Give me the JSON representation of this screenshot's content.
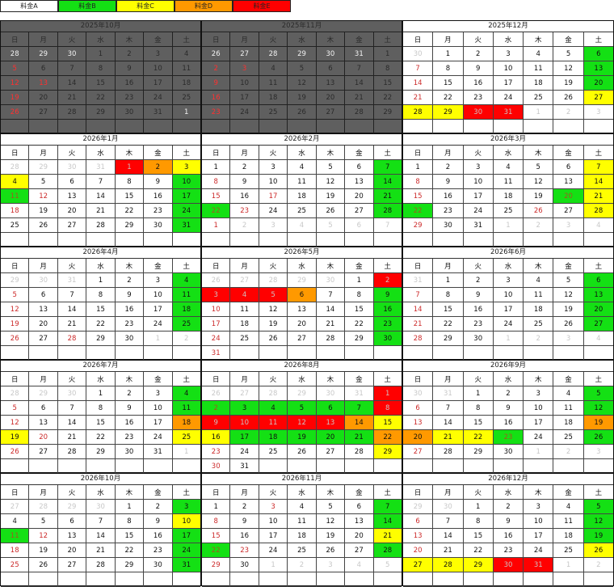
{
  "legend": [
    {
      "label": "料金A",
      "color": "#ffffff"
    },
    {
      "label": "料金B",
      "color": "#14e014"
    },
    {
      "label": "料金C",
      "color": "#ffff00"
    },
    {
      "label": "料金D",
      "color": "#ff9900"
    },
    {
      "label": "料金E",
      "color": "#ff0000"
    }
  ],
  "weekdays": [
    "日",
    "月",
    "火",
    "水",
    "木",
    "金",
    "土"
  ],
  "cell_code_legend": "o = other month, r = red (Sunday/holiday) text, B/C/D/E = rate fill",
  "months": [
    {
      "title": "2025年10月",
      "past": true,
      "weeks": [
        [
          "28o",
          "29o",
          "30o",
          "1",
          "2",
          "3",
          "4"
        ],
        [
          "5r",
          "6",
          "7",
          "8",
          "9",
          "10",
          "11"
        ],
        [
          "12r",
          "13r",
          "14",
          "15",
          "16",
          "17",
          "18"
        ],
        [
          "19r",
          "20",
          "21",
          "22",
          "23",
          "24",
          "25"
        ],
        [
          "26r",
          "27",
          "28",
          "29",
          "30",
          "31",
          "1o"
        ],
        [
          "",
          "",
          "",
          "",
          "",
          "",
          ""
        ]
      ]
    },
    {
      "title": "2025年11月",
      "past": true,
      "weeks": [
        [
          "26o",
          "27o",
          "28o",
          "29o",
          "30o",
          "31o",
          "1"
        ],
        [
          "2r",
          "3r",
          "4",
          "5",
          "6",
          "7",
          "8"
        ],
        [
          "9r",
          "10",
          "11",
          "12",
          "13",
          "14",
          "15"
        ],
        [
          "16r",
          "17",
          "18",
          "19",
          "20",
          "21",
          "22"
        ],
        [
          "23r",
          "24",
          "25",
          "26",
          "27",
          "28",
          "29"
        ],
        [
          "",
          "",
          "",
          "",
          "",
          "",
          ""
        ]
      ]
    },
    {
      "title": "2025年12月",
      "past": false,
      "weeks": [
        [
          "30o",
          "1",
          "2",
          "3",
          "4",
          "5",
          "6B"
        ],
        [
          "7r",
          "8",
          "9",
          "10",
          "11",
          "12",
          "13B"
        ],
        [
          "14r",
          "15",
          "16",
          "17",
          "18",
          "19",
          "20B"
        ],
        [
          "21r",
          "22",
          "23",
          "24",
          "25",
          "26",
          "27C"
        ],
        [
          "28C",
          "29C",
          "30E",
          "31E",
          "1o",
          "2o",
          "3o"
        ],
        [
          "",
          "",
          "",
          "",
          "",
          "",
          ""
        ]
      ]
    },
    {
      "title": "2026年1月",
      "past": false,
      "weeks": [
        [
          "28o",
          "29o",
          "30o",
          "31o",
          "1E",
          "2D",
          "3C"
        ],
        [
          "4C",
          "5",
          "6",
          "7",
          "8",
          "9",
          "10B"
        ],
        [
          "11rB",
          "12r",
          "13",
          "14",
          "15",
          "16",
          "17B"
        ],
        [
          "18r",
          "19",
          "20",
          "21",
          "22",
          "23",
          "24B"
        ],
        [
          "25",
          "26",
          "27",
          "28",
          "29",
          "30",
          "31B"
        ],
        [
          "",
          "",
          "",
          "",
          "",
          "",
          ""
        ]
      ]
    },
    {
      "title": "2026年2月",
      "past": false,
      "weeks": [
        [
          "1",
          "2",
          "3",
          "4",
          "5",
          "6",
          "7B"
        ],
        [
          "8r",
          "9",
          "10",
          "11",
          "12",
          "13",
          "14B"
        ],
        [
          "15r",
          "16",
          "17r",
          "18",
          "19",
          "20",
          "21B"
        ],
        [
          "22rB",
          "23r",
          "24",
          "25",
          "26",
          "27",
          "28B"
        ],
        [
          "1r",
          "2o",
          "3o",
          "4o",
          "5o",
          "6o",
          "7o"
        ],
        [
          "",
          "",
          "",
          "",
          "",
          "",
          ""
        ]
      ]
    },
    {
      "title": "2026年3月",
      "past": false,
      "weeks": [
        [
          "1",
          "2",
          "3",
          "4",
          "5",
          "6",
          "7C"
        ],
        [
          "8r",
          "9",
          "10",
          "11",
          "12",
          "13",
          "14C"
        ],
        [
          "15r",
          "16",
          "17",
          "18",
          "19",
          "20rB",
          "21C"
        ],
        [
          "22rB",
          "23",
          "24",
          "25",
          "26r",
          "27",
          "28C"
        ],
        [
          "29r",
          "30",
          "31",
          "1o",
          "2o",
          "3o",
          "4o"
        ],
        [
          "",
          "",
          "",
          "",
          "",
          "",
          ""
        ]
      ]
    },
    {
      "title": "2026年4月",
      "past": false,
      "weeks": [
        [
          "29o",
          "30o",
          "31o",
          "1",
          "2",
          "3",
          "4B"
        ],
        [
          "5r",
          "6",
          "7",
          "8",
          "9",
          "10",
          "11B"
        ],
        [
          "12r",
          "13",
          "14",
          "15",
          "16",
          "17",
          "18B"
        ],
        [
          "19r",
          "20",
          "21",
          "22",
          "23",
          "24",
          "25B"
        ],
        [
          "26r",
          "27",
          "28r",
          "29",
          "30",
          "1o",
          "2o"
        ],
        [
          "",
          "",
          "",
          "",
          "",
          "",
          ""
        ]
      ]
    },
    {
      "title": "2026年5月",
      "past": false,
      "weeks": [
        [
          "26o",
          "27o",
          "28o",
          "29o",
          "30o",
          "1",
          "2E"
        ],
        [
          "3E",
          "4E",
          "5E",
          "6D",
          "7",
          "8",
          "9B"
        ],
        [
          "10r",
          "11",
          "12",
          "13",
          "14",
          "15",
          "16B"
        ],
        [
          "17r",
          "18",
          "19",
          "20",
          "21",
          "22",
          "23B"
        ],
        [
          "24r",
          "25",
          "26",
          "27",
          "28",
          "29",
          "30B"
        ],
        [
          "31r",
          "",
          "",
          "",
          "",
          "",
          ""
        ]
      ]
    },
    {
      "title": "2026年6月",
      "past": false,
      "weeks": [
        [
          "31o",
          "1",
          "2",
          "3",
          "4",
          "5",
          "6B"
        ],
        [
          "7r",
          "8",
          "9",
          "10",
          "11",
          "12",
          "13B"
        ],
        [
          "14r",
          "15",
          "16",
          "17",
          "18",
          "19",
          "20B"
        ],
        [
          "21r",
          "22",
          "23",
          "24",
          "25",
          "26",
          "27B"
        ],
        [
          "28r",
          "29",
          "30",
          "1o",
          "2o",
          "3o",
          "4o"
        ],
        [
          "",
          "",
          "",
          "",
          "",
          "",
          ""
        ]
      ]
    },
    {
      "title": "2026年7月",
      "past": false,
      "weeks": [
        [
          "28o",
          "29o",
          "30o",
          "1",
          "2",
          "3",
          "4B"
        ],
        [
          "5r",
          "6",
          "7",
          "8",
          "9",
          "10",
          "11B"
        ],
        [
          "12r",
          "13",
          "14",
          "15",
          "16",
          "17",
          "18D"
        ],
        [
          "19C",
          "20r",
          "21",
          "22",
          "23",
          "24",
          "25C"
        ],
        [
          "26r",
          "27",
          "28",
          "29",
          "30",
          "31",
          "1o"
        ],
        [
          "",
          "",
          "",
          "",
          "",
          "",
          ""
        ]
      ]
    },
    {
      "title": "2026年8月",
      "past": false,
      "weeks": [
        [
          "26o",
          "27o",
          "28o",
          "29o",
          "30o",
          "31o",
          "1E"
        ],
        [
          "2rB",
          "3B",
          "4B",
          "5B",
          "6B",
          "7B",
          "8E"
        ],
        [
          "9E",
          "10E",
          "11E",
          "12E",
          "13E",
          "14D",
          "15C"
        ],
        [
          "16C",
          "17B",
          "18B",
          "19B",
          "20B",
          "21B",
          "22D"
        ],
        [
          "23r",
          "24",
          "25",
          "26",
          "27",
          "28",
          "29C"
        ],
        [
          "30r",
          "31",
          "",
          "",
          "",
          "",
          ""
        ]
      ]
    },
    {
      "title": "2026年9月",
      "past": false,
      "weeks": [
        [
          "30o",
          "31o",
          "1",
          "2",
          "3",
          "4",
          "5B"
        ],
        [
          "6r",
          "7",
          "8",
          "9",
          "10",
          "11",
          "12B"
        ],
        [
          "13r",
          "14",
          "15",
          "16",
          "17",
          "18",
          "19D"
        ],
        [
          "20D",
          "21C",
          "22C",
          "23rB",
          "24",
          "25",
          "26B"
        ],
        [
          "27r",
          "28",
          "29",
          "30",
          "1o",
          "2o",
          "3o"
        ],
        [
          "",
          "",
          "",
          "",
          "",
          "",
          ""
        ]
      ]
    },
    {
      "title": "2026年10月",
      "past": false,
      "weeks": [
        [
          "27o",
          "28o",
          "29o",
          "30o",
          "1",
          "2",
          "3B"
        ],
        [
          "4",
          "5",
          "6",
          "7",
          "8",
          "9",
          "10C"
        ],
        [
          "11rB",
          "12r",
          "13",
          "14",
          "15",
          "16",
          "17B"
        ],
        [
          "18r",
          "19",
          "20",
          "21",
          "22",
          "23",
          "24B"
        ],
        [
          "25r",
          "26",
          "27",
          "28",
          "29",
          "30",
          "31B"
        ],
        [
          "",
          "",
          "",
          "",
          "",
          "",
          ""
        ]
      ]
    },
    {
      "title": "2026年11月",
      "past": false,
      "weeks": [
        [
          "1",
          "2",
          "3r",
          "4",
          "5",
          "6",
          "7B"
        ],
        [
          "8r",
          "9",
          "10",
          "11",
          "12",
          "13",
          "14B"
        ],
        [
          "15r",
          "16",
          "17",
          "18",
          "19",
          "20",
          "21C"
        ],
        [
          "22rB",
          "23r",
          "24",
          "25",
          "26",
          "27",
          "28B"
        ],
        [
          "29r",
          "30",
          "1o",
          "2o",
          "3o",
          "4o",
          "5o"
        ],
        [
          "",
          "",
          "",
          "",
          "",
          "",
          ""
        ]
      ]
    },
    {
      "title": "2026年12月",
      "past": false,
      "weeks": [
        [
          "29o",
          "30o",
          "1",
          "2",
          "3",
          "4",
          "5B"
        ],
        [
          "6r",
          "7",
          "8",
          "9",
          "10",
          "11",
          "12B"
        ],
        [
          "13r",
          "14",
          "15",
          "16",
          "17",
          "18",
          "19B"
        ],
        [
          "20r",
          "21",
          "22",
          "23",
          "24",
          "25",
          "26C"
        ],
        [
          "27C",
          "28C",
          "29C",
          "30E",
          "31E",
          "1o",
          "2o"
        ],
        [
          "",
          "",
          "",
          "",
          "",
          "",
          ""
        ]
      ]
    }
  ]
}
